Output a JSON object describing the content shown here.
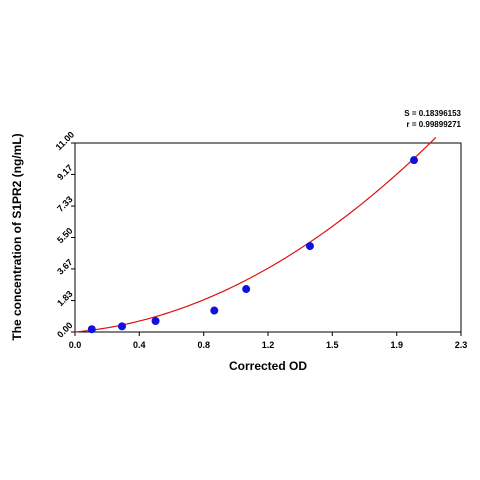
{
  "chart_data": {
    "type": "scatter",
    "xlabel": "Corrected OD",
    "ylabel": "The concentration of S1PR2 (ng/mL)",
    "xlim": [
      0.0,
      2.3
    ],
    "ylim": [
      0.0,
      11.0
    ],
    "x_ticks": [
      "0.0",
      "0.4",
      "0.8",
      "1.2",
      "1.5",
      "1.9",
      "2.3"
    ],
    "x_tick_values": [
      0.0,
      0.383,
      0.767,
      1.15,
      1.533,
      1.917,
      2.3
    ],
    "y_ticks": [
      "0.00",
      "1.83",
      "3.67",
      "5.50",
      "7.33",
      "9.17",
      "11.00"
    ],
    "y_tick_values": [
      0.0,
      1.83,
      3.67,
      5.5,
      7.33,
      9.17,
      11.0
    ],
    "points": [
      {
        "x": 0.1,
        "y": 0.16
      },
      {
        "x": 0.28,
        "y": 0.33
      },
      {
        "x": 0.48,
        "y": 0.64
      },
      {
        "x": 0.83,
        "y": 1.25
      },
      {
        "x": 1.02,
        "y": 2.5
      },
      {
        "x": 1.4,
        "y": 5.0
      },
      {
        "x": 2.02,
        "y": 10.0
      }
    ],
    "fit_curve": {
      "type": "polynomial",
      "coefficients": [
        0.0,
        0.88,
        2.04
      ],
      "x_range": [
        0.0,
        2.15
      ]
    },
    "annotations": [
      "S = 0.18396153",
      "r = 0.99899271"
    ],
    "grid": false,
    "point_color": "#1010e0",
    "curve_color": "#e01010"
  }
}
